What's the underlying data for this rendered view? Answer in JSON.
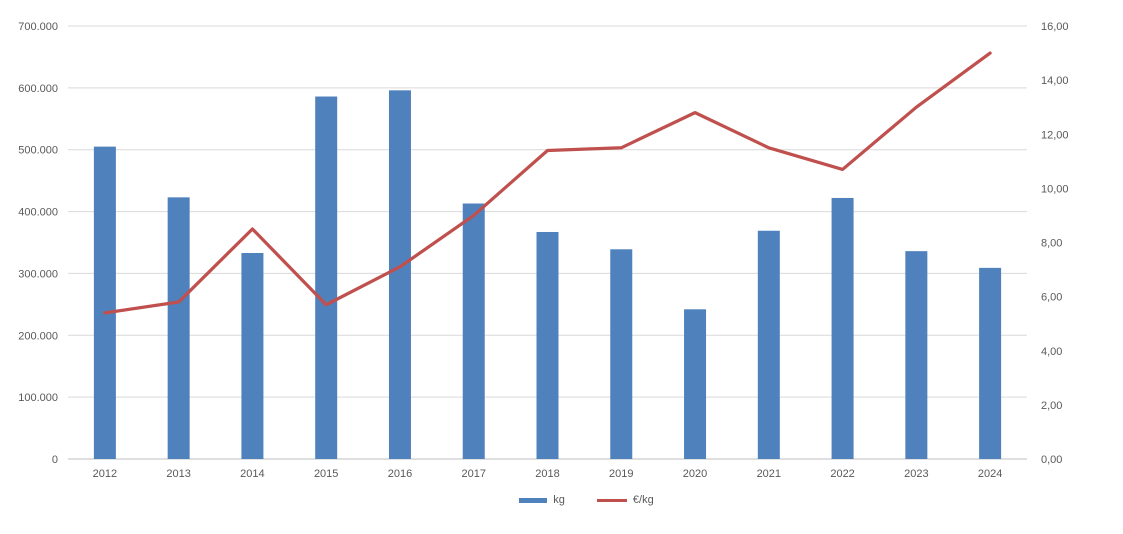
{
  "chart_data": {
    "type": "combo-bar-line",
    "title": "",
    "xlabel": "",
    "ylabel": "",
    "grid": true,
    "legend_position": "bottom-center",
    "categories": [
      "2012",
      "2013",
      "2014",
      "2015",
      "2016",
      "2017",
      "2018",
      "2019",
      "2020",
      "2021",
      "2022",
      "2023",
      "2024"
    ],
    "series": [
      {
        "name": "kg",
        "type": "bar",
        "axis": "left",
        "color": "#4F81BD",
        "values": [
          505000,
          423000,
          333000,
          586000,
          596000,
          413000,
          367000,
          339000,
          242000,
          369000,
          422000,
          336000,
          309000
        ]
      },
      {
        "name": "€/kg",
        "type": "line",
        "axis": "right",
        "color": "#C0504D",
        "values": [
          5.4,
          5.8,
          8.5,
          5.7,
          7.1,
          9.0,
          11.4,
          11.5,
          12.8,
          11.5,
          10.7,
          13.0,
          15.0
        ]
      }
    ],
    "left_axis": {
      "min": 0,
      "max": 700000,
      "step": 100000,
      "tick_labels_bottom_to_top": [
        "0",
        "100.000",
        "200.000",
        "300.000",
        "400.000",
        "500.000",
        "600.000",
        "700.000"
      ]
    },
    "right_axis": {
      "min": 0,
      "max": 16,
      "step": 2,
      "tick_labels_bottom_to_top": [
        "0,00",
        "2,00",
        "4,00",
        "6,00",
        "8,00",
        "10,00",
        "12,00",
        "14,00",
        "16,00"
      ]
    }
  },
  "legend": {
    "items": [
      {
        "label": "kg",
        "color": "#4F81BD",
        "shape": "rect"
      },
      {
        "label": "€/kg",
        "color": "#C0504D",
        "shape": "line"
      }
    ]
  },
  "colors": {
    "bar": "#4F81BD",
    "line": "#C0504D",
    "gridline": "#D9D9D9",
    "axis_line": "#BFBFBF",
    "tick_text": "#595959",
    "background": "#FFFFFF"
  }
}
